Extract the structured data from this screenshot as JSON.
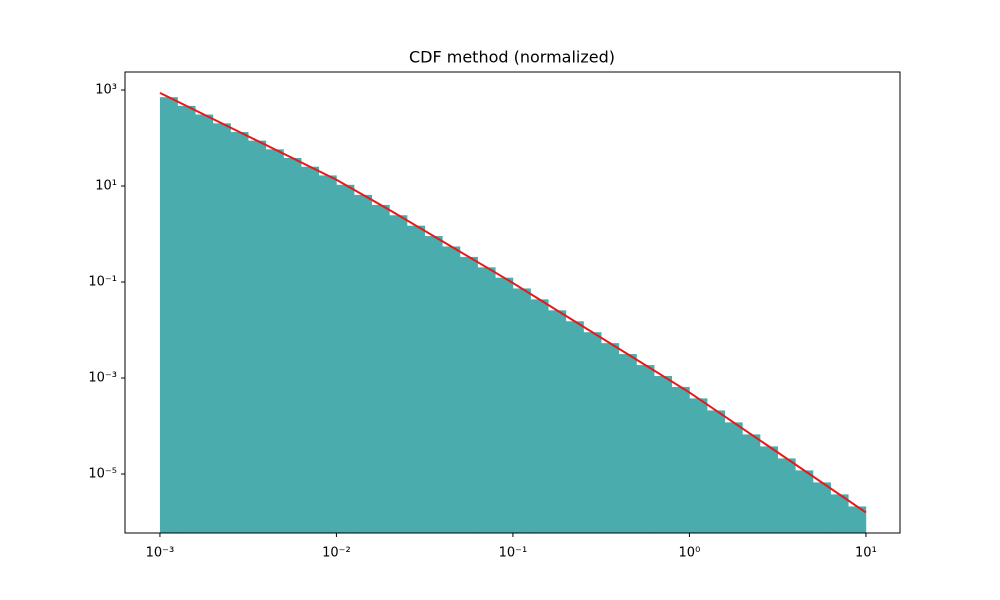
{
  "chart_data": {
    "type": "histogram",
    "title": "CDF method (normalized)",
    "bins": [
      0.001,
      0.001259,
      0.001585,
      0.001995,
      0.002512,
      0.003162,
      0.003981,
      0.005012,
      0.00631,
      0.007943,
      0.01,
      0.01259,
      0.01585,
      0.01995,
      0.02512,
      0.03162,
      0.03981,
      0.05012,
      0.0631,
      0.07943,
      0.1,
      0.1259,
      0.1585,
      0.1995,
      0.2512,
      0.3162,
      0.3981,
      0.5012,
      0.631,
      0.7943,
      1,
      1.259,
      1.585,
      1.995,
      2.512,
      3.162,
      3.981,
      5.012,
      6.31,
      7.943,
      10
    ],
    "values": [
      708,
      467,
      308,
      202,
      133,
      88.1,
      58.1,
      38.3,
      25.2,
      16.6,
      10.6,
      6.53,
      4.03,
      2.46,
      1.49,
      0.906,
      0.55,
      0.333,
      0.202,
      0.123,
      0.0734,
      0.0435,
      0.0257,
      0.0152,
      0.009,
      0.00532,
      0.00315,
      0.00186,
      0.0011,
      0.000652,
      0.000376,
      0.000211,
      0.000119,
      6.68e-05,
      3.76e-05,
      2.11e-05,
      1.19e-05,
      6.68e-06,
      3.76e-06,
      2.11e-06
    ],
    "color": "#4aacac",
    "line": {
      "x": [
        0.001,
        0.01,
        0.02,
        0.1,
        1,
        3.162,
        10
      ],
      "values": [
        871,
        13.5,
        3.16,
        0.0955,
        0.000501,
        2.82e-05,
        1.58e-06
      ],
      "color": "#e41a1c"
    },
    "log_x": true,
    "log_y": true,
    "xlim": [
      0.000634,
      15.6
    ],
    "ylim": [
      5.9e-07,
      2371
    ],
    "xticks": [
      {
        "value": 0.001,
        "label": "10⁻³"
      },
      {
        "value": 0.01,
        "label": "10⁻²"
      },
      {
        "value": 0.1,
        "label": "10⁻¹"
      },
      {
        "value": 1,
        "label": "10⁰"
      },
      {
        "value": 10,
        "label": "10¹"
      }
    ],
    "yticks": [
      {
        "value": 1e-05,
        "label": "10⁻⁵"
      },
      {
        "value": 0.001,
        "label": "10⁻³"
      },
      {
        "value": 0.1,
        "label": "10⁻¹"
      },
      {
        "value": 10,
        "label": "10¹"
      },
      {
        "value": 1000,
        "label": "10³"
      }
    ]
  }
}
